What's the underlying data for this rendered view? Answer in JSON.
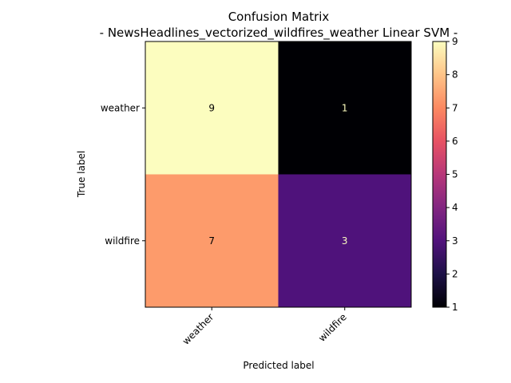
{
  "chart_data": {
    "type": "heatmap",
    "title": "Confusion Matrix",
    "subtitle": "- NewsHeadlines_vectorized_wildfires_weather Linear SVM -",
    "xlabel": "Predicted label",
    "ylabel": "True label",
    "x_categories": [
      "weather",
      "wildfire"
    ],
    "y_categories": [
      "weather",
      "wildfire"
    ],
    "values": [
      [
        9,
        1
      ],
      [
        7,
        3
      ]
    ],
    "colormap": "magma",
    "colorbar": {
      "min": 1,
      "max": 9,
      "ticks": [
        "1",
        "2",
        "3",
        "4",
        "5",
        "6",
        "7",
        "8",
        "9"
      ]
    },
    "colors": {
      "cell_9": "#fcfdbf",
      "cell_7": "#fd9b6b",
      "cell_3": "#4f127b",
      "cell_1": "#000004"
    },
    "grid": false
  }
}
